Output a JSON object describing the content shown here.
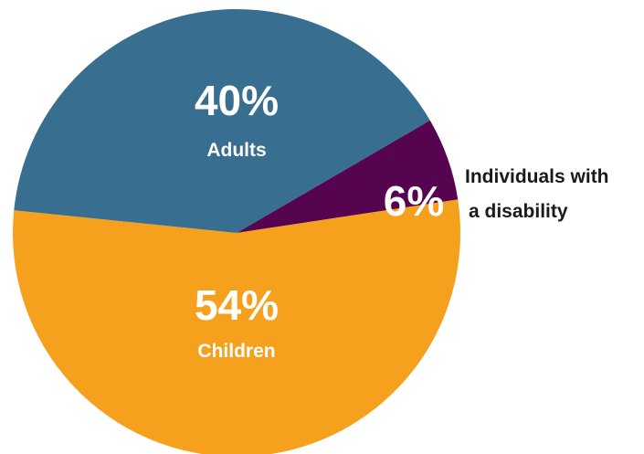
{
  "chart_data": {
    "type": "pie",
    "title": "",
    "slices": [
      {
        "label": "Adults",
        "value": 40,
        "value_label": "40%",
        "color": "#386e8f"
      },
      {
        "label": "Individuals with a disability",
        "label_lines": [
          "Individuals with",
          "a disability"
        ],
        "value": 6,
        "value_label": "6%",
        "color": "#56044f"
      },
      {
        "label": "Children",
        "value": 54,
        "value_label": "54%",
        "color": "#f5a11e"
      }
    ],
    "legend": "none",
    "label_text_color": "#ffffff",
    "external_label_color": "#1a1a1a"
  }
}
